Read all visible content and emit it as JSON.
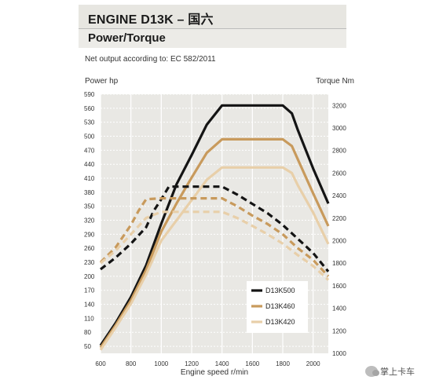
{
  "header": {
    "title": "ENGINE D13K – 国六",
    "subtitle": "Power/Torque",
    "note": "Net output according to: EC 582/2011"
  },
  "watermark": {
    "text": "掌上卡车",
    "icon": "wechat-icon"
  },
  "chart_data": {
    "type": "line",
    "title": "",
    "xlabel": "Engine speed r/min",
    "ylabel_left": "Power hp",
    "ylabel_right": "Torque Nm",
    "xlim": [
      600,
      2100
    ],
    "ylim_left": [
      35,
      590
    ],
    "ylim_right": [
      1000,
      3300
    ],
    "x_ticks": [
      600,
      800,
      1000,
      1200,
      1400,
      1600,
      1800,
      2000
    ],
    "y_ticks_left": [
      50,
      80,
      110,
      140,
      170,
      200,
      230,
      260,
      290,
      320,
      350,
      380,
      410,
      440,
      470,
      500,
      530,
      560,
      590
    ],
    "y_ticks_right": [
      1000,
      1200,
      1400,
      1600,
      1800,
      2000,
      2200,
      2400,
      2600,
      2800,
      3000,
      3200
    ],
    "grid": true,
    "legend_position": "bottom-right",
    "series": [
      {
        "name": "D13K500",
        "color": "#141414",
        "axis": "right",
        "quantity": "torque",
        "x": [
          600,
          700,
          800,
          900,
          1000,
          1100,
          1200,
          1300,
          1400,
          1500,
          1600,
          1700,
          1800,
          1860,
          1900,
          2000,
          2100
        ],
        "y": [
          1070,
          1270,
          1500,
          1780,
          2150,
          2500,
          2760,
          3030,
          3200,
          3200,
          3200,
          3200,
          3200,
          3130,
          2980,
          2640,
          2330
        ]
      },
      {
        "name": "D13K460",
        "color": "#c89a5c",
        "axis": "right",
        "quantity": "torque",
        "x": [
          600,
          700,
          800,
          900,
          1000,
          1100,
          1200,
          1300,
          1400,
          1500,
          1600,
          1700,
          1800,
          1860,
          1900,
          2000,
          2100
        ],
        "y": [
          1050,
          1250,
          1470,
          1740,
          2080,
          2330,
          2560,
          2780,
          2900,
          2900,
          2900,
          2900,
          2900,
          2840,
          2720,
          2420,
          2130
        ]
      },
      {
        "name": "D13K420",
        "color": "#e8cfa9",
        "axis": "right",
        "quantity": "torque",
        "x": [
          600,
          700,
          800,
          900,
          1000,
          1100,
          1200,
          1300,
          1400,
          1500,
          1600,
          1700,
          1800,
          1860,
          1900,
          2000,
          2100
        ],
        "y": [
          1030,
          1230,
          1440,
          1700,
          2000,
          2180,
          2360,
          2540,
          2650,
          2650,
          2650,
          2650,
          2650,
          2600,
          2490,
          2250,
          1970
        ]
      },
      {
        "name": "D13K500",
        "color": "#141414",
        "axis": "left",
        "quantity": "power",
        "x": [
          600,
          700,
          800,
          900,
          950,
          1000,
          1050,
          1100,
          1200,
          1300,
          1400,
          1500,
          1600,
          1700,
          1800,
          1900,
          2000,
          2100
        ],
        "y": [
          215,
          240,
          270,
          305,
          340,
          365,
          392,
          392,
          392,
          392,
          392,
          375,
          355,
          335,
          310,
          280,
          250,
          210
        ]
      },
      {
        "name": "D13K460",
        "color": "#c89a5c",
        "axis": "left",
        "quantity": "power",
        "x": [
          600,
          700,
          800,
          850,
          900,
          1000,
          1100,
          1200,
          1300,
          1400,
          1500,
          1600,
          1700,
          1800,
          1900,
          2000,
          2100
        ],
        "y": [
          230,
          262,
          310,
          340,
          365,
          367,
          367,
          367,
          367,
          367,
          350,
          330,
          312,
          290,
          260,
          235,
          200
        ]
      },
      {
        "name": "D13K420",
        "color": "#e8cfa9",
        "axis": "left",
        "quantity": "power",
        "x": [
          600,
          700,
          800,
          900,
          1000,
          1100,
          1200,
          1300,
          1400,
          1500,
          1600,
          1700,
          1800,
          1900,
          2000,
          2100
        ],
        "y": [
          228,
          255,
          290,
          325,
          338,
          338,
          338,
          338,
          338,
          325,
          308,
          290,
          270,
          245,
          222,
          192
        ]
      }
    ]
  }
}
